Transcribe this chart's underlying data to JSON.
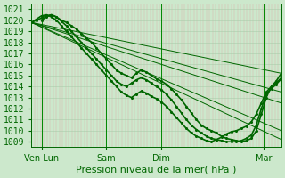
{
  "bg_color": "#cce8cc",
  "grid_color_v": "#ddaaaa",
  "grid_color_h": "#aaccaa",
  "line_color": "#006600",
  "ylabel_text": "Pression niveau de la mer( hPa )",
  "xtick_labels": [
    "Ven Lun",
    "Sam",
    "Dim",
    "Mar"
  ],
  "xtick_positions": [
    0.04,
    0.3,
    0.52,
    0.93
  ],
  "ylim": [
    1008.5,
    1021.5
  ],
  "yticks": [
    1009,
    1010,
    1011,
    1012,
    1013,
    1014,
    1015,
    1016,
    1017,
    1018,
    1019,
    1020,
    1021
  ],
  "straight_lines": [
    {
      "x": [
        0,
        1
      ],
      "y": [
        1019.8,
        1015.2
      ]
    },
    {
      "x": [
        0,
        1
      ],
      "y": [
        1019.8,
        1012.5
      ]
    },
    {
      "x": [
        0,
        1
      ],
      "y": [
        1019.8,
        1009.2
      ]
    },
    {
      "x": [
        0,
        1
      ],
      "y": [
        1019.8,
        1013.5
      ]
    },
    {
      "x": [
        0,
        1
      ],
      "y": [
        1019.8,
        1010.0
      ]
    }
  ],
  "wavy_line1_x": [
    0.0,
    0.02,
    0.04,
    0.06,
    0.08,
    0.1,
    0.12,
    0.14,
    0.16,
    0.18,
    0.2,
    0.22,
    0.24,
    0.26,
    0.28,
    0.3,
    0.32,
    0.34,
    0.36,
    0.38,
    0.4,
    0.42,
    0.44,
    0.46,
    0.48,
    0.5,
    0.52,
    0.54,
    0.56,
    0.58,
    0.6,
    0.62,
    0.64,
    0.66,
    0.68,
    0.7,
    0.72,
    0.74,
    0.76,
    0.78,
    0.8,
    0.82,
    0.84,
    0.86,
    0.88,
    0.9,
    0.92,
    0.94,
    0.96,
    0.98,
    1.0
  ],
  "wavy_line1_y": [
    1019.8,
    1020.0,
    1020.2,
    1020.4,
    1020.5,
    1020.3,
    1020.0,
    1019.8,
    1019.5,
    1019.2,
    1018.8,
    1018.4,
    1018.0,
    1017.5,
    1017.0,
    1016.5,
    1016.0,
    1015.5,
    1015.2,
    1015.0,
    1014.8,
    1015.2,
    1015.5,
    1015.3,
    1015.0,
    1014.7,
    1014.5,
    1014.2,
    1013.8,
    1013.3,
    1012.8,
    1012.2,
    1011.6,
    1011.0,
    1010.5,
    1010.2,
    1010.0,
    1009.8,
    1009.5,
    1009.3,
    1009.2,
    1009.1,
    1009.0,
    1009.1,
    1009.3,
    1010.0,
    1011.5,
    1013.0,
    1014.0,
    1014.5,
    1015.2
  ],
  "wavy_line2_x": [
    0.0,
    0.02,
    0.04,
    0.06,
    0.08,
    0.1,
    0.12,
    0.14,
    0.16,
    0.18,
    0.2,
    0.22,
    0.24,
    0.26,
    0.28,
    0.3,
    0.32,
    0.34,
    0.36,
    0.38,
    0.4,
    0.42,
    0.44,
    0.46,
    0.48,
    0.5,
    0.52,
    0.54,
    0.56,
    0.58,
    0.6,
    0.62,
    0.64,
    0.66,
    0.68,
    0.7,
    0.72,
    0.74,
    0.76,
    0.78,
    0.8,
    0.82,
    0.84,
    0.86,
    0.88,
    0.9,
    0.92,
    0.94,
    0.96,
    0.98,
    1.0
  ],
  "wavy_line2_y": [
    1019.8,
    1020.1,
    1020.4,
    1020.5,
    1020.3,
    1020.0,
    1019.5,
    1019.0,
    1018.5,
    1018.0,
    1017.5,
    1017.0,
    1016.5,
    1016.0,
    1015.5,
    1015.0,
    1014.5,
    1014.0,
    1013.5,
    1013.2,
    1013.0,
    1013.3,
    1013.6,
    1013.4,
    1013.1,
    1012.9,
    1012.6,
    1012.2,
    1011.7,
    1011.2,
    1010.7,
    1010.2,
    1009.8,
    1009.5,
    1009.3,
    1009.1,
    1009.0,
    1009.2,
    1009.4,
    1009.7,
    1009.9,
    1010.0,
    1010.2,
    1010.4,
    1010.8,
    1011.5,
    1012.5,
    1013.5,
    1014.0,
    1014.3,
    1014.8
  ],
  "wavy_line3_x": [
    0.04,
    0.06,
    0.08,
    0.1,
    0.12,
    0.14,
    0.16,
    0.18,
    0.2,
    0.22,
    0.24,
    0.26,
    0.28,
    0.3,
    0.32,
    0.34,
    0.36,
    0.38,
    0.4,
    0.42,
    0.44,
    0.46,
    0.48,
    0.5,
    0.52,
    0.54,
    0.56,
    0.58,
    0.6,
    0.62,
    0.64,
    0.66,
    0.68,
    0.7,
    0.72,
    0.74,
    0.76,
    0.78,
    0.8,
    0.82,
    0.84,
    0.86,
    0.88,
    0.9,
    0.92,
    0.94,
    0.96,
    0.98,
    1.0
  ],
  "wavy_line3_y": [
    1020.0,
    1020.3,
    1020.5,
    1020.3,
    1019.9,
    1019.5,
    1019.0,
    1018.5,
    1018.0,
    1017.5,
    1017.0,
    1016.5,
    1016.0,
    1015.5,
    1015.0,
    1014.5,
    1014.2,
    1014.0,
    1014.3,
    1014.6,
    1014.8,
    1014.6,
    1014.3,
    1014.0,
    1013.7,
    1013.3,
    1012.8,
    1012.2,
    1011.6,
    1011.0,
    1010.5,
    1010.1,
    1009.8,
    1009.5,
    1009.3,
    1009.2,
    1009.1,
    1009.0,
    1009.0,
    1009.0,
    1009.1,
    1009.3,
    1009.6,
    1010.5,
    1012.0,
    1013.3,
    1013.8,
    1014.2,
    1014.7
  ],
  "vline_positions": [
    0.04,
    0.3,
    0.52,
    0.93
  ],
  "font_size_ylabel": 8,
  "font_size_yticks": 7,
  "font_size_xticks": 7
}
